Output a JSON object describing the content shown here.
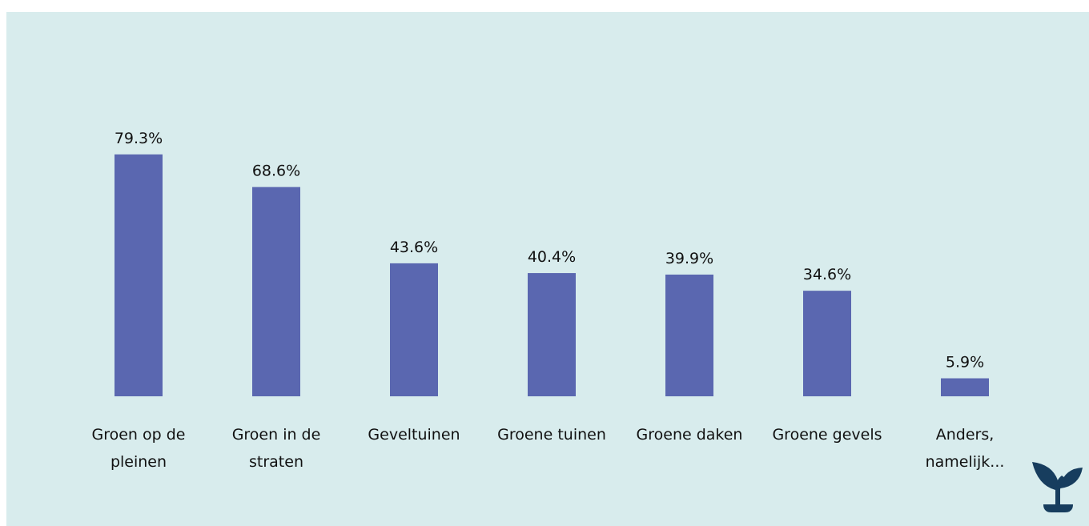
{
  "chart_data": {
    "type": "bar",
    "categories": [
      "Groen op de pleinen",
      "Groen in de straten",
      "Geveltuinen",
      "Groene tuinen",
      "Groene daken",
      "Groene gevels",
      "Anders, namelijk..."
    ],
    "values": [
      79.3,
      68.6,
      43.6,
      40.4,
      39.9,
      34.6,
      5.9
    ],
    "value_labels": [
      "79.3%",
      "68.6%",
      "43.6%",
      "40.4%",
      "39.9%",
      "34.6%",
      "5.9%"
    ],
    "color": "#5a67b0"
  }
}
